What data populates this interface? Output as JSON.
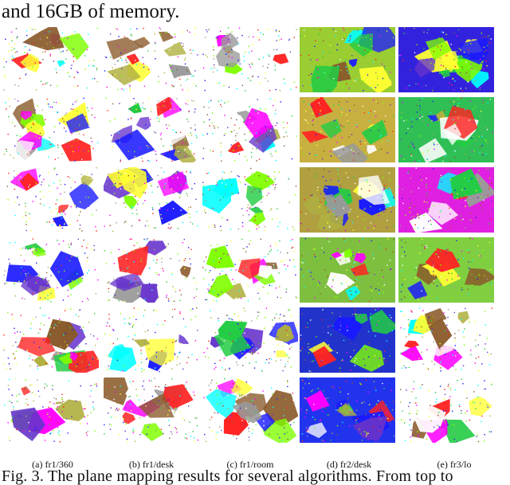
{
  "intro_line": "and 16GB of memory.",
  "columns": [
    {
      "caption": "(a) fr1/360"
    },
    {
      "caption": "(b) fr1/desk"
    },
    {
      "caption": "(c) fr1/room"
    },
    {
      "caption": "(d) fr2/desk"
    },
    {
      "caption": "(e) fr3/lo"
    }
  ],
  "figure_caption": "Fig. 3.    The plane mapping results for several algorithms. From top to",
  "palette": [
    "#7fff00",
    "#22cc44",
    "#ff00ff",
    "#1a1aff",
    "#00ffff",
    "#ffff33",
    "#ff2222",
    "#9a9a9a",
    "#8a5a2b",
    "#b0b040",
    "#ffffff",
    "#6633cc"
  ]
}
